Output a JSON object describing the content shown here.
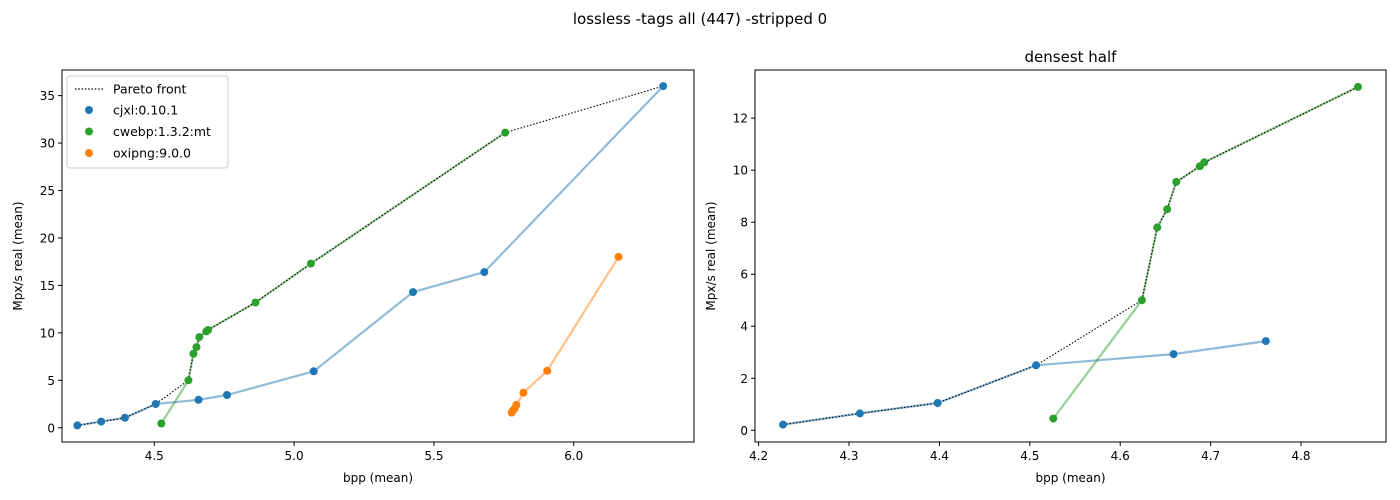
{
  "suptitle": "lossless -tags all (447) -stripped 0",
  "colors": {
    "cjxl": "#1f77b4",
    "cwebp": "#2ca02c",
    "oxipng": "#ff7f0e",
    "pareto": "#000000"
  },
  "legend": {
    "placement": "upper-left",
    "entries": [
      {
        "label": "Pareto front",
        "kind": "line",
        "color": "#000000"
      },
      {
        "label": "cjxl:0.10.1",
        "kind": "marker",
        "color": "#1f77b4"
      },
      {
        "label": "cwebp:1.3.2:mt",
        "kind": "marker",
        "color": "#2ca02c"
      },
      {
        "label": "oxipng:9.0.0",
        "kind": "marker",
        "color": "#ff7f0e"
      }
    ]
  },
  "chart_data": [
    {
      "type": "scatter",
      "title": "",
      "xlabel": "bpp (mean)",
      "ylabel": "Mpx/s real (mean)",
      "xlim": [
        4.17,
        6.43
      ],
      "ylim": [
        -1.5,
        37.7
      ],
      "xticks": [
        4.5,
        5.0,
        5.5,
        6.0
      ],
      "xtick_labels": [
        "4.5",
        "5.0",
        "5.5",
        "6.0"
      ],
      "yticks": [
        0,
        5,
        10,
        15,
        20,
        25,
        30,
        35
      ],
      "ytick_labels": [
        "0",
        "5",
        "10",
        "15",
        "20",
        "25",
        "30",
        "35"
      ],
      "grid": false,
      "series": [
        {
          "name": "cjxl:0.10.1",
          "color": "#1f77b4",
          "x": [
            4.225,
            4.31,
            4.395,
            4.505,
            4.658,
            4.76,
            5.07,
            5.425,
            5.68,
            6.32
          ],
          "y": [
            0.25,
            0.65,
            1.05,
            2.5,
            2.95,
            3.45,
            5.95,
            14.3,
            16.4,
            36.0
          ]
        },
        {
          "name": "cwebp:1.3.2:mt",
          "color": "#2ca02c",
          "x": [
            4.525,
            4.622,
            4.64,
            4.651,
            4.661,
            4.686,
            4.692,
            4.862,
            5.06,
            5.755
          ],
          "y": [
            0.45,
            5.0,
            7.8,
            8.5,
            9.55,
            10.15,
            10.3,
            13.2,
            17.3,
            31.1
          ]
        },
        {
          "name": "oxipng:9.0.0",
          "color": "#ff7f0e",
          "x": [
            5.778,
            5.782,
            5.788,
            5.795,
            5.82,
            5.905,
            6.16
          ],
          "y": [
            1.6,
            1.8,
            2.0,
            2.4,
            3.7,
            6.0,
            18.0
          ]
        }
      ],
      "pareto": {
        "x": [
          4.225,
          4.31,
          4.395,
          4.505,
          4.622,
          4.64,
          4.651,
          4.661,
          4.686,
          4.692,
          4.862,
          5.06,
          5.755,
          6.32
        ],
        "y": [
          0.25,
          0.65,
          1.05,
          2.5,
          5.0,
          7.8,
          8.5,
          9.55,
          10.15,
          10.3,
          13.2,
          17.3,
          31.1,
          36.0
        ]
      }
    },
    {
      "type": "scatter",
      "title": "densest half",
      "xlabel": "bpp (mean)",
      "ylabel": "Mpx/s real (mean)",
      "xlim": [
        4.196,
        4.894
      ],
      "ylim": [
        -0.45,
        13.85
      ],
      "xticks": [
        4.2,
        4.3,
        4.4,
        4.5,
        4.6,
        4.7,
        4.8
      ],
      "xtick_labels": [
        "4.2",
        "4.3",
        "4.4",
        "4.5",
        "4.6",
        "4.7",
        "4.8"
      ],
      "yticks": [
        0,
        2,
        4,
        6,
        8,
        10,
        12
      ],
      "ytick_labels": [
        "0",
        "2",
        "4",
        "6",
        "8",
        "10",
        "12"
      ],
      "grid": false,
      "series": [
        {
          "name": "cjxl:0.10.1",
          "color": "#1f77b4",
          "x": [
            4.227,
            4.312,
            4.398,
            4.507,
            4.659,
            4.761
          ],
          "y": [
            0.22,
            0.65,
            1.05,
            2.5,
            2.93,
            3.43
          ]
        },
        {
          "name": "cwebp:1.3.2:mt",
          "color": "#2ca02c",
          "x": [
            4.526,
            4.624,
            4.641,
            4.652,
            4.662,
            4.688,
            4.693,
            4.863
          ],
          "y": [
            0.45,
            5.0,
            7.8,
            8.5,
            9.55,
            10.15,
            10.3,
            13.2
          ]
        }
      ],
      "pareto": {
        "x": [
          4.227,
          4.312,
          4.398,
          4.507,
          4.624,
          4.641,
          4.652,
          4.662,
          4.688,
          4.693,
          4.863
        ],
        "y": [
          0.22,
          0.65,
          1.05,
          2.5,
          5.0,
          7.8,
          8.5,
          9.55,
          10.15,
          10.3,
          13.2
        ]
      }
    }
  ]
}
